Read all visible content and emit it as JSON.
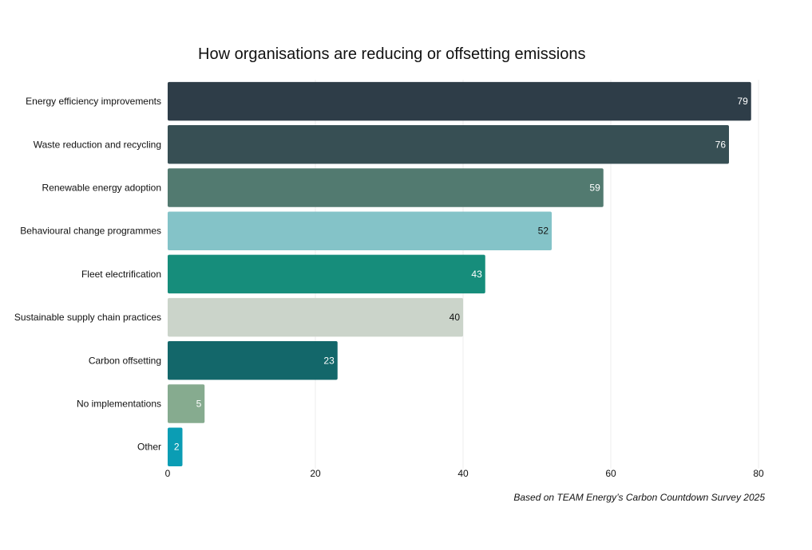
{
  "chart_data": {
    "type": "bar",
    "orientation": "horizontal",
    "title": "How organisations are reducing or offsetting emissions",
    "categories": [
      "Energy efficiency improvements",
      "Waste reduction and recycling",
      "Renewable energy adoption",
      "Behavioural change programmes",
      "Fleet electrification",
      "Sustainable supply chain practices",
      "Carbon offsetting",
      "No implementations",
      "Other"
    ],
    "values": [
      79,
      76,
      59,
      52,
      43,
      40,
      23,
      5,
      2
    ],
    "colors": [
      "#2e3d48",
      "#374f54",
      "#527a70",
      "#84c3c8",
      "#168d7b",
      "#cbd4ca",
      "#13676a",
      "#86ab8f",
      "#0b9db4"
    ],
    "label_colors": [
      "#ffffff",
      "#ffffff",
      "#ffffff",
      "#111111",
      "#ffffff",
      "#111111",
      "#ffffff",
      "#ffffff",
      "#ffffff"
    ],
    "x_ticks": [
      0,
      20,
      40,
      60,
      80
    ],
    "xlim": [
      0,
      80
    ],
    "xlabel": "",
    "ylabel": "",
    "grid": true,
    "source": "Based on TEAM Energy’s Carbon Countdown Survey 2025"
  }
}
